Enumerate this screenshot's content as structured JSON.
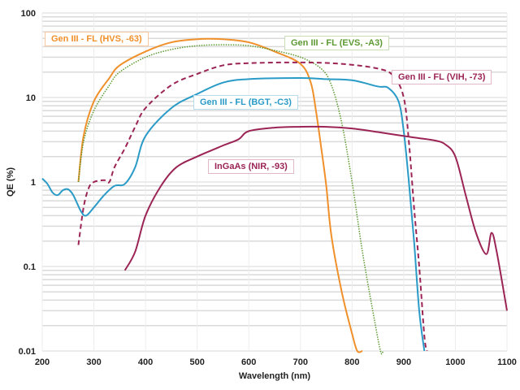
{
  "chart_data": {
    "type": "line",
    "title": "",
    "xlabel": "Wavelength (nm)",
    "ylabel": "QE (%)",
    "xlim": [
      200,
      1100
    ],
    "ylim": [
      0.01,
      100
    ],
    "yscale": "log",
    "grid": true,
    "x_ticks": [
      "200",
      "300",
      "400",
      "500",
      "600",
      "700",
      "800",
      "900",
      "1000",
      "1100"
    ],
    "y_ticks": [
      "0.01",
      "0.1",
      "1",
      "10",
      "100"
    ],
    "series": [
      {
        "name": "Gen III - FL (HVS, -63)",
        "color": "#F0902A",
        "style": "solid",
        "x": [
          270,
          280,
          300,
          330,
          350,
          400,
          450,
          500,
          550,
          600,
          650,
          700,
          720,
          730,
          740,
          750,
          760,
          780,
          800,
          810,
          820
        ],
        "y": [
          1.0,
          3.5,
          9,
          17,
          24,
          35,
          45,
          49,
          49,
          45,
          35,
          25,
          15,
          7,
          2.6,
          0.9,
          0.23,
          0.05,
          0.016,
          0.01,
          0.01
        ]
      },
      {
        "name": "Gen III - FL (EVS, -A3)",
        "color": "#5E9A32",
        "style": "dotted",
        "x": [
          270,
          280,
          300,
          330,
          350,
          400,
          450,
          500,
          550,
          600,
          650,
          700,
          740,
          760,
          780,
          800,
          820,
          840,
          855,
          860
        ],
        "y": [
          1.0,
          3,
          7,
          14,
          20,
          30,
          37,
          41,
          42,
          41,
          36,
          30,
          22,
          14,
          5,
          1,
          0.15,
          0.03,
          0.01,
          0.01
        ]
      },
      {
        "name": "Gen III - FL (VIH, -73)",
        "color": "#9B2455",
        "style": "dashed",
        "x": [
          270,
          280,
          290,
          300,
          320,
          330,
          340,
          360,
          380,
          400,
          450,
          500,
          550,
          600,
          700,
          780,
          850,
          880,
          900,
          910,
          920,
          930,
          940,
          945
        ],
        "y": [
          0.18,
          0.5,
          0.85,
          1.0,
          1.05,
          1.0,
          1.5,
          2.5,
          4.5,
          7.5,
          14,
          19,
          24,
          25.5,
          26,
          25,
          22,
          18,
          10,
          3,
          0.5,
          0.1,
          0.015,
          0.01
        ]
      },
      {
        "name": "Gen III - FL (BGT, -C3)",
        "color": "#2A9BC7",
        "style": "solid",
        "x": [
          200,
          210,
          220,
          230,
          240,
          250,
          260,
          275,
          285,
          300,
          320,
          340,
          360,
          380,
          400,
          450,
          500,
          550,
          600,
          700,
          750,
          800,
          850,
          870,
          890,
          900,
          910,
          920,
          930,
          940
        ],
        "y": [
          1.1,
          0.95,
          0.75,
          0.7,
          0.8,
          0.82,
          0.7,
          0.45,
          0.4,
          0.5,
          0.7,
          0.9,
          0.95,
          1.5,
          3.5,
          7.5,
          11,
          15,
          16.5,
          17,
          16.5,
          16,
          13.5,
          13,
          9,
          4,
          1,
          0.2,
          0.03,
          0.01
        ]
      },
      {
        "name": "InGaAs (NIR, -93)",
        "color": "#9B2455",
        "style": "solid",
        "x": [
          360,
          380,
          400,
          430,
          460,
          500,
          550,
          580,
          600,
          650,
          700,
          750,
          800,
          850,
          900,
          930,
          960,
          980,
          1000,
          1020,
          1040,
          1060,
          1070,
          1080,
          1100
        ],
        "y": [
          0.09,
          0.15,
          0.4,
          0.9,
          1.5,
          2,
          2.7,
          3.2,
          4,
          4.4,
          4.5,
          4.5,
          4.3,
          3.9,
          3.5,
          3.3,
          3.1,
          2.8,
          2,
          0.7,
          0.25,
          0.14,
          0.25,
          0.15,
          0.03
        ]
      }
    ]
  }
}
